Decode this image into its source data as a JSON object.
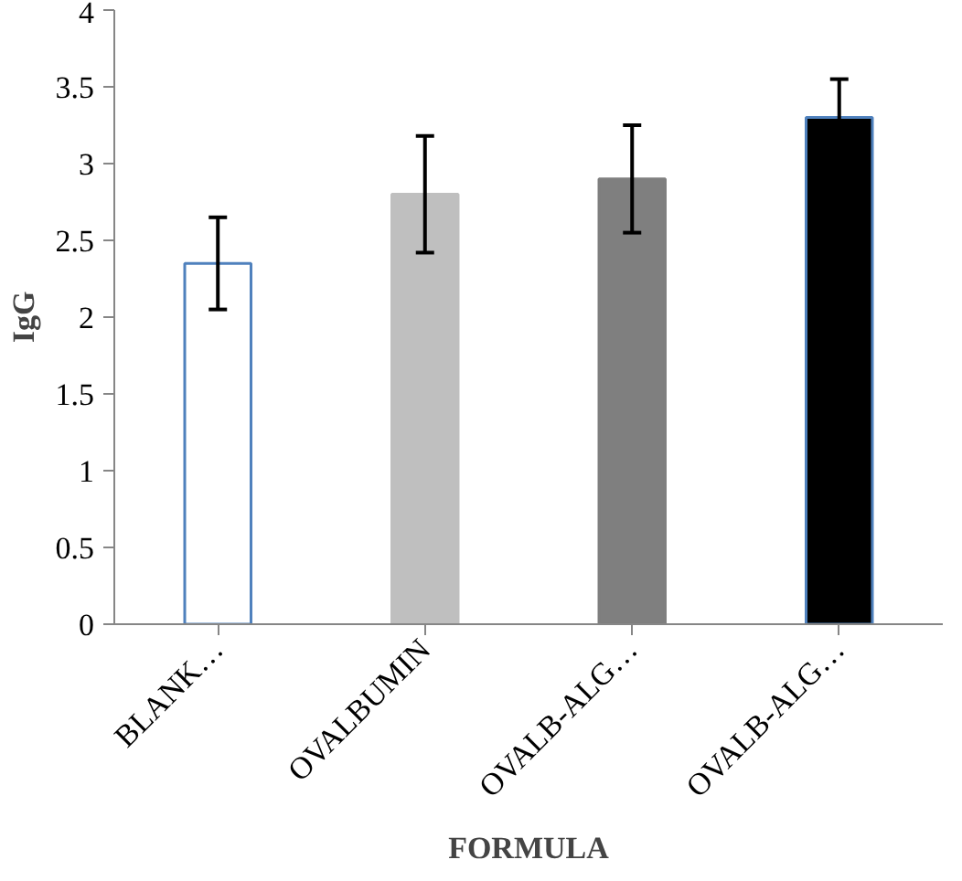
{
  "chart_data": {
    "type": "bar",
    "xlabel": "FORMULA",
    "ylabel": "IgG",
    "categories": [
      "BLANK…",
      "OVALBUMIN",
      "OVALB-ALG…",
      "OVALB-ALG…"
    ],
    "values": [
      2.35,
      2.8,
      2.9,
      3.3
    ],
    "errors": [
      0.3,
      0.38,
      0.35,
      0.25
    ],
    "colors": [
      "#ffffff",
      "#bfbfbf",
      "#7f7f7f",
      "#000000"
    ],
    "ylim": [
      0,
      4
    ],
    "yticks": [
      0,
      0.5,
      1,
      1.5,
      2,
      2.5,
      3,
      3.5,
      4
    ],
    "grid": false
  }
}
